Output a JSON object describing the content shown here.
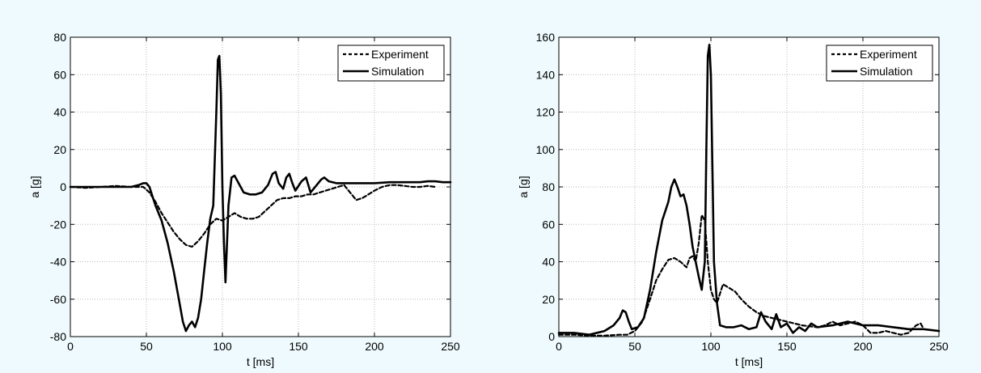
{
  "chart_data": [
    {
      "type": "line",
      "xlabel": "t [ms]",
      "ylabel": "a [g]",
      "xlim": [
        0,
        250
      ],
      "ylim": [
        -80,
        80
      ],
      "xticks": [
        0,
        50,
        100,
        150,
        200,
        250
      ],
      "yticks": [
        -80,
        -60,
        -40,
        -20,
        0,
        20,
        40,
        60,
        80
      ],
      "grid": true,
      "legend": "top-right",
      "series": [
        {
          "name": "Experiment",
          "style": "dashed",
          "color": "#000000",
          "x": [
            0,
            10,
            20,
            30,
            40,
            48,
            52,
            56,
            60,
            64,
            68,
            72,
            76,
            80,
            84,
            88,
            92,
            96,
            100,
            104,
            108,
            112,
            116,
            120,
            124,
            128,
            132,
            136,
            140,
            144,
            148,
            152,
            156,
            160,
            164,
            168,
            172,
            176,
            180,
            184,
            188,
            192,
            196,
            200,
            205,
            210,
            215,
            220,
            225,
            230,
            235,
            240
          ],
          "y": [
            0,
            -0.5,
            0,
            0.5,
            0,
            0,
            -3,
            -8,
            -14,
            -19,
            -24,
            -28,
            -31,
            -32,
            -29,
            -25,
            -20,
            -17,
            -18,
            -16,
            -14,
            -16,
            -17,
            -17,
            -16,
            -13,
            -10,
            -7,
            -6,
            -6,
            -5,
            -5,
            -4,
            -4,
            -3,
            -2,
            -1,
            0,
            1,
            -3,
            -7,
            -6,
            -4,
            -2,
            0,
            1,
            1,
            0.5,
            0,
            0,
            0.5,
            0
          ]
        },
        {
          "name": "Simulation",
          "style": "solid",
          "color": "#000000",
          "x": [
            0,
            10,
            20,
            30,
            40,
            45,
            48,
            50,
            52,
            54,
            56,
            60,
            64,
            68,
            72,
            74,
            76,
            78,
            80,
            82,
            84,
            86,
            88,
            90,
            92,
            94,
            96,
            97,
            98,
            99,
            100,
            101,
            102,
            104,
            106,
            108,
            110,
            114,
            118,
            122,
            126,
            130,
            133,
            135,
            137,
            140,
            142,
            144,
            146,
            148,
            152,
            155,
            158,
            162,
            165,
            167,
            170,
            175,
            180,
            190,
            200,
            210,
            220,
            230,
            235,
            240,
            245,
            250
          ],
          "y": [
            0,
            0,
            0,
            0,
            0,
            1,
            2,
            2,
            0,
            -5,
            -10,
            -18,
            -30,
            -45,
            -63,
            -72,
            -77,
            -74,
            -72,
            -75,
            -70,
            -60,
            -45,
            -30,
            -17,
            -10,
            40,
            68,
            70,
            50,
            0,
            -30,
            -51,
            -10,
            5,
            6,
            3,
            -3,
            -4,
            -4,
            -3,
            1,
            7,
            8,
            2,
            -1,
            5,
            7,
            2,
            -2,
            3,
            5,
            -3,
            1,
            4,
            5,
            3,
            2,
            2,
            2,
            2,
            2.5,
            2.5,
            2.5,
            3,
            3,
            2.5,
            2.5
          ]
        }
      ]
    },
    {
      "type": "line",
      "xlabel": "t [ms]",
      "ylabel": "a [g]",
      "xlim": [
        0,
        250
      ],
      "ylim": [
        0,
        160
      ],
      "xticks": [
        0,
        50,
        100,
        150,
        200,
        250
      ],
      "yticks": [
        0,
        20,
        40,
        60,
        80,
        100,
        120,
        140,
        160
      ],
      "grid": true,
      "legend": "top-right",
      "series": [
        {
          "name": "Experiment",
          "style": "dashed",
          "color": "#000000",
          "x": [
            0,
            10,
            20,
            30,
            40,
            45,
            50,
            55,
            60,
            64,
            68,
            72,
            76,
            80,
            84,
            86,
            88,
            90,
            92,
            94,
            96,
            98,
            100,
            102,
            104,
            108,
            112,
            116,
            120,
            125,
            130,
            135,
            140,
            145,
            150,
            160,
            170,
            175,
            180,
            185,
            190,
            195,
            200,
            205,
            210,
            215,
            220,
            225,
            230,
            235,
            238,
            240
          ],
          "y": [
            1,
            1,
            0.5,
            0.5,
            1,
            1,
            3,
            8,
            20,
            30,
            36,
            41,
            42,
            40,
            37,
            42,
            43,
            40,
            50,
            65,
            62,
            40,
            25,
            20,
            18,
            28,
            26,
            24,
            20,
            16,
            13,
            11,
            10,
            9,
            8,
            6,
            5,
            6,
            8,
            6,
            7,
            8,
            6,
            2,
            2,
            3,
            2,
            1,
            2,
            6,
            7,
            4
          ]
        },
        {
          "name": "Simulation",
          "style": "solid",
          "color": "#000000",
          "x": [
            0,
            10,
            20,
            30,
            36,
            40,
            42,
            44,
            46,
            48,
            52,
            56,
            60,
            64,
            68,
            72,
            74,
            76,
            78,
            80,
            82,
            84,
            86,
            88,
            90,
            92,
            94,
            96,
            97,
            98,
            99,
            100,
            101,
            102,
            104,
            106,
            110,
            115,
            120,
            125,
            130,
            133,
            136,
            140,
            143,
            146,
            150,
            154,
            158,
            162,
            166,
            170,
            180,
            190,
            200,
            210,
            220,
            230,
            240,
            250
          ],
          "y": [
            2,
            2,
            1,
            3,
            6,
            10,
            14,
            13,
            8,
            4,
            5,
            10,
            25,
            45,
            62,
            72,
            80,
            84,
            80,
            75,
            76,
            70,
            60,
            48,
            40,
            32,
            25,
            40,
            100,
            150,
            156,
            140,
            90,
            40,
            18,
            6,
            5,
            5,
            6,
            4,
            5,
            13,
            8,
            4,
            12,
            5,
            7,
            2,
            5,
            3,
            7,
            5,
            6,
            8,
            6,
            6,
            5,
            4,
            4,
            3
          ]
        }
      ]
    }
  ]
}
